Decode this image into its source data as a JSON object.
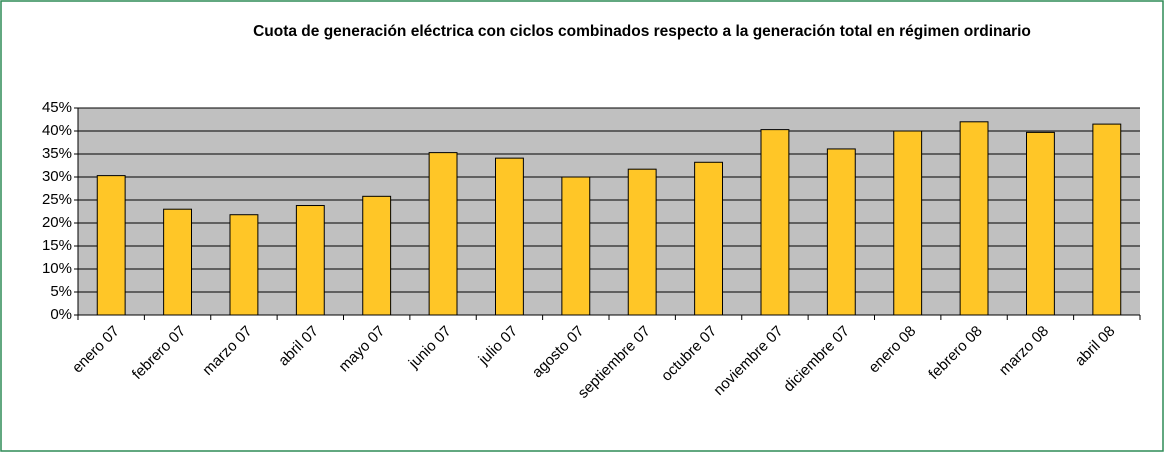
{
  "chart_data": {
    "type": "bar",
    "title": "Cuota de generación eléctrica con ciclos combinados respecto a la generación total en régimen ordinario",
    "categories": [
      "enero 07",
      "febrero 07",
      "marzo 07",
      "abril 07",
      "mayo 07",
      "junio 07",
      "julio 07",
      "agosto 07",
      "septiembre 07",
      "octubre 07",
      "noviembre 07",
      "diciembre 07",
      "enero 08",
      "febrero 08",
      "marzo 08",
      "abril 08"
    ],
    "values": [
      30.3,
      23,
      21.8,
      23.8,
      25.8,
      35.3,
      34.1,
      30,
      31.7,
      33.2,
      40.3,
      36.1,
      40,
      42,
      39.7,
      41.5
    ],
    "color": "#ffc627",
    "ylim": [
      0,
      45
    ],
    "yticks": [
      {
        "value": 0,
        "label": "0%"
      },
      {
        "value": 5,
        "label": "5%"
      },
      {
        "value": 10,
        "label": "10%"
      },
      {
        "value": 15,
        "label": "15%"
      },
      {
        "value": 20,
        "label": "20%"
      },
      {
        "value": 25,
        "label": "25%"
      },
      {
        "value": 30,
        "label": "30%"
      },
      {
        "value": 35,
        "label": "35%"
      },
      {
        "value": 40,
        "label": "40%"
      },
      {
        "value": 45,
        "label": "45%"
      }
    ],
    "grid": true
  }
}
